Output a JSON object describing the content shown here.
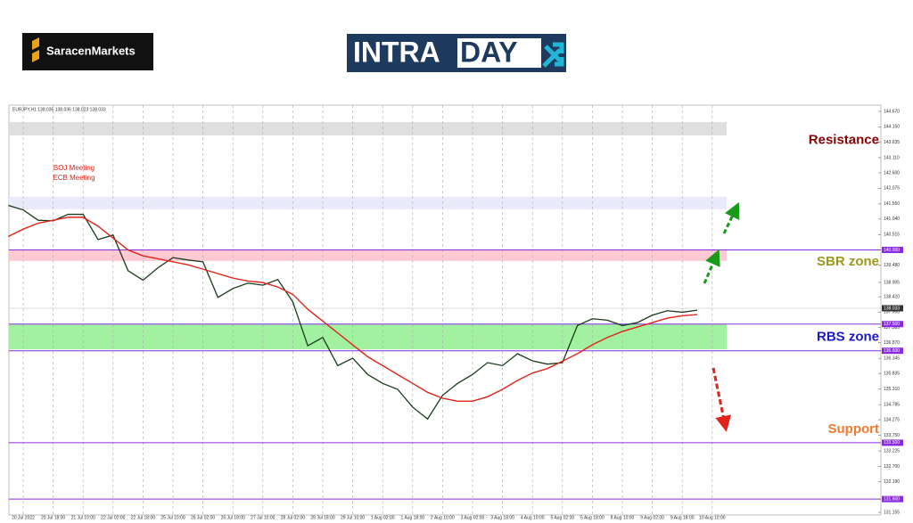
{
  "header": {
    "brand": "SaracenMarkets",
    "badge_part1": "INTRA",
    "badge_part2": "DAY"
  },
  "chart_data": {
    "type": "line",
    "symbol_info": "EURJPY,H1 138.035 138.036 138.023 138.033",
    "categories": [
      null,
      "20 Jul 2022",
      null,
      "20 Jul 18:00",
      null,
      "21 Jul 10:00",
      null,
      "22 Jul 02:00",
      null,
      "22 Jul 18:00",
      null,
      "25 Jul 10:00",
      null,
      "26 Jul 02:00",
      null,
      "26 Jul 18:00",
      null,
      "27 Jul 10:00",
      null,
      "28 Jul 02:00",
      null,
      "28 Jul 18:00",
      null,
      "29 Jul 10:00",
      null,
      "1 Aug 02:00",
      null,
      "1 Aug 18:00",
      null,
      "2 Aug 10:00",
      null,
      "3 Aug 02:00",
      null,
      "3 Aug 18:00",
      null,
      "4 Aug 10:00",
      null,
      "5 Aug 02:00",
      null,
      "5 Aug 18:00",
      null,
      "8 Aug 10:00",
      null,
      "9 Aug 02:00",
      null,
      "9 Aug 18:00",
      null,
      "10 Aug 10:00"
    ],
    "series": [
      {
        "color": "#1b3a1b",
        "values": [
          141.5,
          141.35,
          141.0,
          140.98,
          141.2,
          141.2,
          140.35,
          140.5,
          139.3,
          138.98,
          139.4,
          139.74,
          139.66,
          139.6,
          138.4,
          138.7,
          138.88,
          138.81,
          139.0,
          138.25,
          136.77,
          137.05,
          136.1,
          136.35,
          135.8,
          135.5,
          135.3,
          134.7,
          134.3,
          135.1,
          135.5,
          135.8,
          136.2,
          136.1,
          136.5,
          136.26,
          136.15,
          136.2,
          137.45,
          137.68,
          137.63,
          137.45,
          137.55,
          137.8,
          137.95,
          137.9,
          137.97,
          null
        ]
      },
      {
        "color": "#e0241b",
        "values": [
          140.45,
          140.7,
          140.9,
          141.0,
          141.1,
          141.1,
          140.8,
          140.4,
          140.0,
          139.8,
          139.7,
          139.6,
          139.5,
          139.35,
          139.2,
          139.05,
          138.95,
          138.9,
          138.75,
          138.5,
          138.0,
          137.6,
          137.2,
          136.8,
          136.4,
          136.1,
          135.8,
          135.5,
          135.2,
          135.0,
          134.9,
          134.9,
          135.05,
          135.3,
          135.6,
          135.85,
          136.0,
          136.25,
          136.5,
          136.8,
          137.05,
          137.25,
          137.4,
          137.55,
          137.7,
          137.78,
          137.82,
          null
        ]
      }
    ],
    "ylim": [
      131.155,
      144.67
    ],
    "yticks": [
      {
        "value": 144.67,
        "label": "144.670"
      },
      {
        "value": 144.15,
        "label": "144.150"
      },
      {
        "value": 143.635,
        "label": "143.635"
      },
      {
        "value": 143.11,
        "label": "143.110"
      },
      {
        "value": 142.6,
        "label": "142.600"
      },
      {
        "value": 142.075,
        "label": "142.075"
      },
      {
        "value": 141.55,
        "label": "141.550"
      },
      {
        "value": 141.04,
        "label": "141.040"
      },
      {
        "value": 140.515,
        "label": "140.515"
      },
      {
        "value": 139.48,
        "label": "139.480"
      },
      {
        "value": 138.905,
        "label": "138.905"
      },
      {
        "value": 138.42,
        "label": "138.420"
      },
      {
        "value": 137.9,
        "label": "137.900"
      },
      {
        "value": 137.385,
        "label": "137.385"
      },
      {
        "value": 136.87,
        "label": "136.870"
      },
      {
        "value": 136.345,
        "label": "136.345"
      },
      {
        "value": 135.835,
        "label": "135.835"
      },
      {
        "value": 135.31,
        "label": "135.310"
      },
      {
        "value": 134.785,
        "label": "134.785"
      },
      {
        "value": 134.275,
        "label": "134.275"
      },
      {
        "value": 133.75,
        "label": "133.750"
      },
      {
        "value": 133.225,
        "label": "133.225"
      },
      {
        "value": 132.7,
        "label": "132.700"
      },
      {
        "value": 132.19,
        "label": "132.190"
      },
      {
        "value": 131.155,
        "label": "131.155"
      }
    ],
    "grid": true,
    "current_price": {
      "value": 138.033,
      "label": "138.033"
    },
    "levels": [
      {
        "value": 140.0,
        "label": "140.000"
      },
      {
        "value": 137.5,
        "label": "137.500"
      },
      {
        "value": 136.6,
        "label": "136.600"
      },
      {
        "value": 133.5,
        "label": "133.500"
      },
      {
        "value": 131.6,
        "label": "131.600"
      }
    ],
    "level_color": "#8a2be2",
    "zones": [
      {
        "from": 143.86,
        "to": 144.31,
        "color": "#d9d9d9"
      },
      {
        "from": 141.37,
        "to": 141.79,
        "color": "#e6e6fa"
      },
      {
        "from": 139.63,
        "to": 140.02,
        "color": "#ffc0cb"
      },
      {
        "from": 136.65,
        "to": 137.49,
        "color": "#90ee90"
      }
    ],
    "zone_labels": [
      {
        "text": "Resistance",
        "color": "#8b0000",
        "value": 143.7
      },
      {
        "text": "SBR zone",
        "color": "#9a9a1a",
        "value": 139.6
      },
      {
        "text": "RBS zone",
        "color": "#1a1acc",
        "value": 137.05
      },
      {
        "text": "Support",
        "color": "#f07a30",
        "value": 133.95
      }
    ],
    "annotations": [
      "BOJ Meeting",
      "ECB Meeting"
    ]
  }
}
